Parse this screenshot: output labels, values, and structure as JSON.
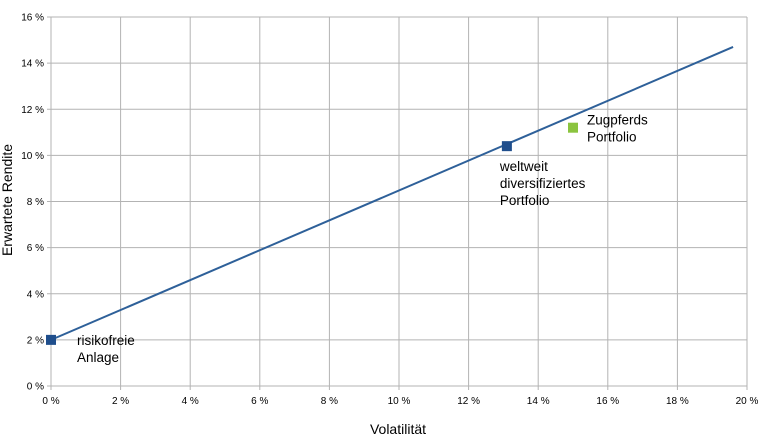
{
  "chart_data": {
    "type": "scatter",
    "title": "",
    "xlabel": "Volatilität",
    "ylabel": "Erwartete Rendite",
    "xlim": [
      0,
      20
    ],
    "ylim": [
      0,
      16
    ],
    "grid": true,
    "x_ticks": [
      "0 %",
      "2 %",
      "4 %",
      "6 %",
      "8 %",
      "10 %",
      "12 %",
      "14 %",
      "16 %",
      "18 %",
      "20 %"
    ],
    "y_ticks": [
      "0 %",
      "2 %",
      "4 %",
      "6 %",
      "8 %",
      "10 %",
      "12 %",
      "14 %",
      "16 %"
    ],
    "line": {
      "x": [
        0,
        19.6
      ],
      "y": [
        2,
        14.7
      ],
      "color": "#2e6099"
    },
    "points": [
      {
        "x": 0,
        "y": 2,
        "color": "#1f4e8c",
        "label": [
          "risikofreie",
          "Anlage"
        ]
      },
      {
        "x": 13.1,
        "y": 10.4,
        "color": "#1f4e8c",
        "label": [
          "weltweit",
          "diversifiziertes",
          "Portfolio"
        ]
      },
      {
        "x": 15.0,
        "y": 11.2,
        "color": "#8bc43f",
        "label": [
          "Zugpferds",
          "Portfolio"
        ]
      }
    ]
  }
}
